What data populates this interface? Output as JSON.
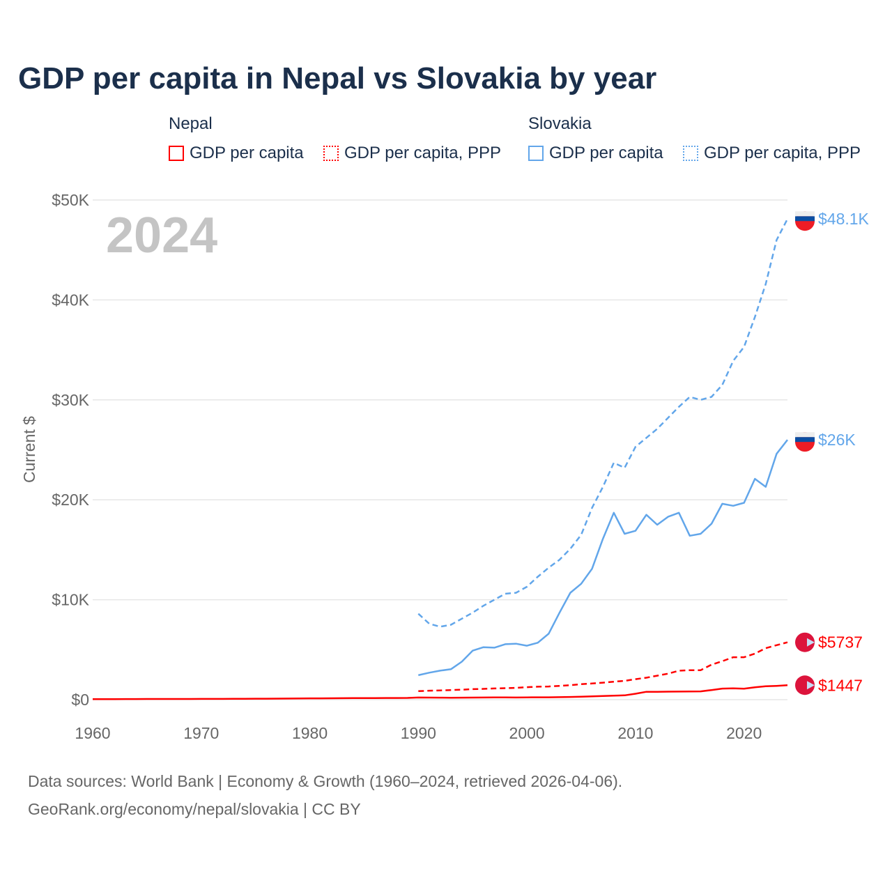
{
  "title": "GDP per capita in Nepal vs Slovakia by year",
  "legend": {
    "groups": [
      {
        "name": "Nepal",
        "color": "#ff0000"
      },
      {
        "name": "Slovakia",
        "color": "#62a6ea"
      }
    ],
    "items": [
      {
        "label": "GDP per capita",
        "group": 0,
        "style": "solid"
      },
      {
        "label": "GDP per capita, PPP",
        "group": 0,
        "style": "dotted"
      },
      {
        "label": "GDP per capita",
        "group": 1,
        "style": "solid"
      },
      {
        "label": "GDP per capita, PPP",
        "group": 1,
        "style": "dotted"
      }
    ]
  },
  "year_watermark": "2024",
  "footer": {
    "line1": "Data sources: World Bank | Economy & Growth (1960–2024, retrieved 2026-04-06).",
    "line2": "GeoRank.org/economy/nepal/slovakia | CC BY"
  },
  "chart_data": {
    "type": "line",
    "ylabel": "Current $",
    "xlim": [
      1960,
      2024
    ],
    "ylim": [
      0,
      50000
    ],
    "xticks": [
      1960,
      1970,
      1980,
      1990,
      2000,
      2010,
      2020
    ],
    "xtick_labels": [
      "1960",
      "1970",
      "1980",
      "1990",
      "2000",
      "2010",
      "2020"
    ],
    "yticks": [
      0,
      10000,
      20000,
      30000,
      40000,
      50000
    ],
    "ytick_labels": [
      "$0",
      "$10K",
      "$20K",
      "$30K",
      "$40K",
      "$50K"
    ],
    "grid": true,
    "series": [
      {
        "name": "Slovakia GDP per capita, PPP",
        "country": "Slovakia",
        "color": "#62a6ea",
        "dash": true,
        "end_label": "$48.1K",
        "start": 1990,
        "values": [
          8600,
          7600,
          7300,
          7500,
          8100,
          8700,
          9400,
          10000,
          10600,
          10700,
          11300,
          12300,
          13200,
          14000,
          15100,
          16500,
          19200,
          21300,
          23700,
          23200,
          25300,
          26200,
          27100,
          28200,
          29300,
          30300,
          30000,
          30300,
          31500,
          33900,
          35300,
          38300,
          41600,
          46000,
          48100
        ]
      },
      {
        "name": "Slovakia GDP per capita",
        "country": "Slovakia",
        "color": "#62a6ea",
        "dash": false,
        "end_label": "$26K",
        "start": 1990,
        "values": [
          2450,
          2700,
          2900,
          3050,
          3800,
          4900,
          5250,
          5200,
          5550,
          5600,
          5400,
          5700,
          6600,
          8700,
          10700,
          11600,
          13100,
          16100,
          18700,
          16600,
          16900,
          18500,
          17500,
          18300,
          18700,
          16400,
          16600,
          17600,
          19600,
          19400,
          19700,
          22100,
          21300,
          24600,
          26000
        ]
      },
      {
        "name": "Nepal GDP per capita, PPP",
        "country": "Nepal",
        "color": "#ff0000",
        "dash": true,
        "end_label": "$5737",
        "start": 1990,
        "values": [
          850,
          900,
          930,
          960,
          1000,
          1050,
          1080,
          1120,
          1150,
          1180,
          1250,
          1300,
          1320,
          1380,
          1450,
          1550,
          1620,
          1700,
          1800,
          1880,
          2050,
          2200,
          2400,
          2600,
          2900,
          2950,
          2950,
          3500,
          3850,
          4250,
          4250,
          4600,
          5150,
          5450,
          5737
        ]
      },
      {
        "name": "Nepal GDP per capita",
        "country": "Nepal",
        "color": "#ff0000",
        "dash": false,
        "end_label": "$1447",
        "start": 1960,
        "values": [
          50,
          50,
          55,
          60,
          65,
          70,
          72,
          68,
          70,
          72,
          75,
          78,
          80,
          85,
          90,
          95,
          100,
          105,
          110,
          120,
          130,
          135,
          140,
          145,
          150,
          155,
          160,
          165,
          170,
          175,
          213,
          210,
          200,
          195,
          200,
          210,
          215,
          225,
          220,
          215,
          230,
          240,
          240,
          250,
          270,
          300,
          330,
          360,
          400,
          430,
          590,
          790,
          790,
          800,
          810,
          820,
          830,
          960,
          1110,
          1130,
          1100,
          1240,
          1340,
          1380,
          1447
        ]
      }
    ]
  }
}
